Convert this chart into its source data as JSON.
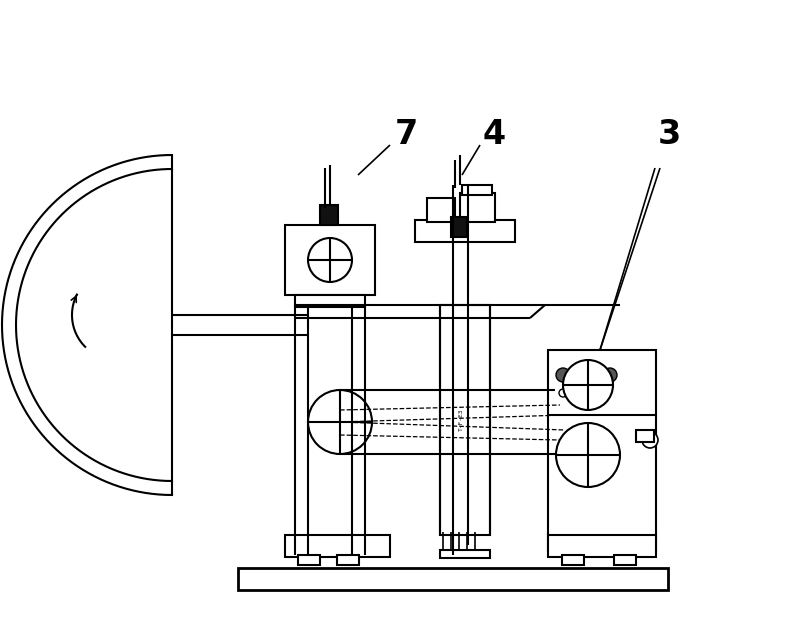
{
  "bg_color": "#ffffff",
  "line_color": "#000000",
  "label_fontsize": 24,
  "fig_width": 8.0,
  "fig_height": 6.43
}
